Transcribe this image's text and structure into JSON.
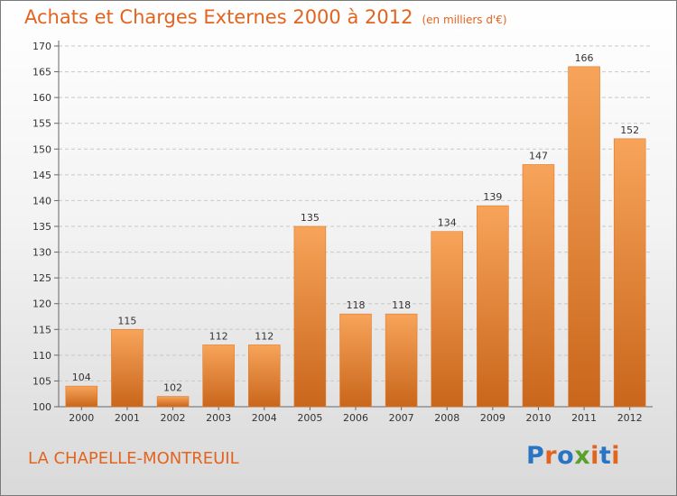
{
  "title": "Achats et Charges Externes 2000 à 2012",
  "unit_note": "(en milliers d'€)",
  "commune": "LA CHAPELLE-MONTREUIL",
  "logo": {
    "text": "Proxiti",
    "colors": [
      "#2a74c4",
      "#e2641f",
      "#2a74c4",
      "#5aa02c",
      "#e2641f",
      "#2a74c4",
      "#e2641f"
    ]
  },
  "colors": {
    "bar": "#f08a30",
    "bar_light": "#f7a45a",
    "bar_dark": "#c9661b",
    "title": "#e2641f",
    "grid": "#c8c8c8"
  },
  "chart_data": {
    "type": "bar",
    "title": "Achats et Charges Externes 2000 à 2012",
    "categories": [
      "2000",
      "2001",
      "2002",
      "2003",
      "2004",
      "2005",
      "2006",
      "2007",
      "2008",
      "2009",
      "2010",
      "2011",
      "2012"
    ],
    "values": [
      104,
      115,
      102,
      112,
      112,
      135,
      118,
      118,
      134,
      139,
      147,
      166,
      152
    ],
    "xlabel": "",
    "ylabel": "",
    "ylim": [
      100,
      170
    ],
    "yticks": [
      100,
      105,
      110,
      115,
      120,
      125,
      130,
      135,
      140,
      145,
      150,
      155,
      160,
      165,
      170
    ],
    "grid": true,
    "legend": "none"
  }
}
